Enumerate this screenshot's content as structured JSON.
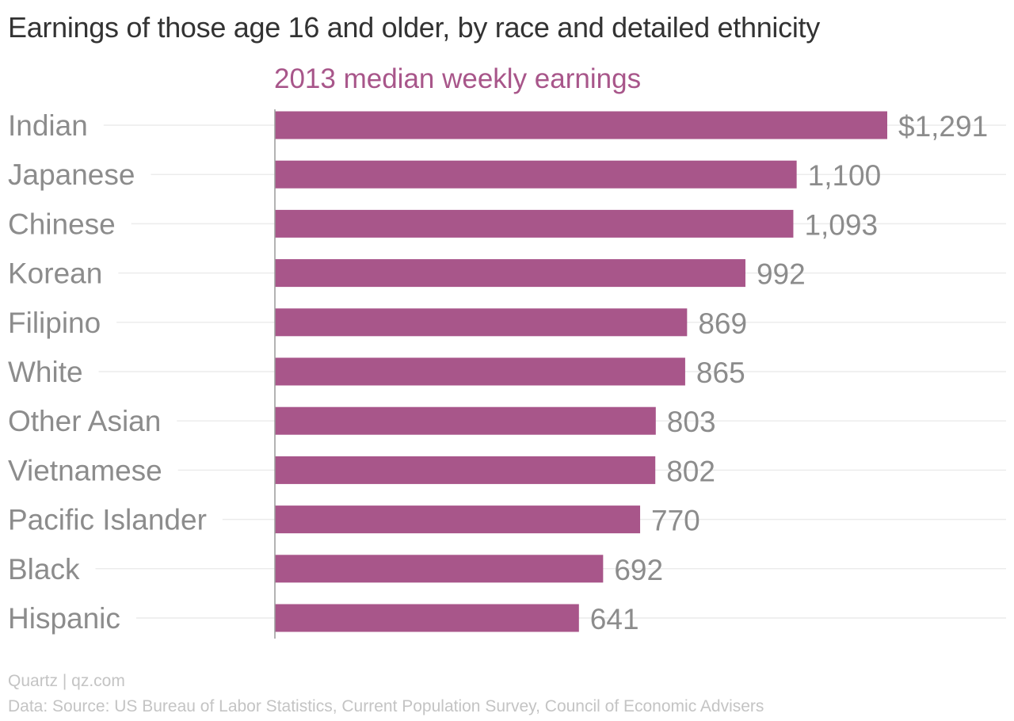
{
  "header": {
    "title": "Earnings of those age 16 and older, by race and detailed ethnicity",
    "subtitle": "2013 median weekly earnings"
  },
  "footer": {
    "source": "Quartz | qz.com",
    "data_note": "Data: Source: US Bureau of Labor Statistics, Current Population Survey, Council of Economic Advisers"
  },
  "colors": {
    "bar": "#a8568a",
    "subtitle": "#a8568a",
    "label": "#8c8c8c",
    "gridline": "#ececec",
    "axis": "#9a9a9a"
  },
  "chart_data": {
    "type": "bar",
    "orientation": "horizontal",
    "title": "Earnings of those age 16 and older, by race and detailed ethnicity",
    "subtitle": "2013 median weekly earnings",
    "categories": [
      "Indian",
      "Japanese",
      "Chinese",
      "Korean",
      "Filipino",
      "White",
      "Other Asian",
      "Vietnamese",
      "Pacific Islander",
      "Black",
      "Hispanic"
    ],
    "values": [
      1291,
      1100,
      1093,
      992,
      869,
      865,
      803,
      802,
      770,
      692,
      641
    ],
    "value_labels": [
      "$1,291",
      "1,100",
      "1,093",
      "992",
      "869",
      "865",
      "803",
      "802",
      "770",
      "692",
      "641"
    ],
    "xlim": [
      0,
      1291
    ],
    "grid": true
  }
}
